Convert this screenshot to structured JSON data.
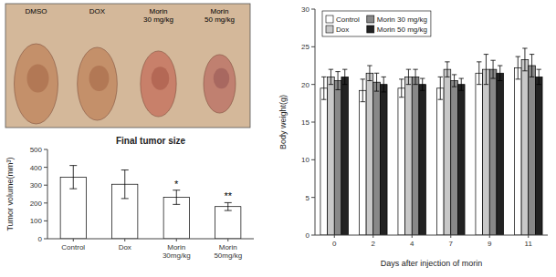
{
  "chart_data": [
    {
      "type": "image",
      "categories": [
        "DMSO",
        "DOX",
        "Morin\n30 mg/kg",
        "Morin\n50 mg/kg"
      ]
    },
    {
      "type": "bar",
      "title": "Final tumor size",
      "y_label": "Tumor volume(mm³)",
      "categories": [
        "Control",
        "Dox",
        "Morin\n30mg/kg",
        "Morin\n50mg/kg"
      ],
      "values": [
        345,
        305,
        232,
        180
      ],
      "errors": [
        65,
        80,
        40,
        22
      ],
      "color": "#ffffff",
      "ylim": [
        0,
        500
      ],
      "yticks": [
        0,
        100,
        200,
        300,
        400,
        500
      ],
      "annotations": [
        {
          "index": 2,
          "text": "*"
        },
        {
          "index": 3,
          "text": "**"
        }
      ]
    },
    {
      "type": "bar",
      "x_label": "Days after injection of morin",
      "y_label": "Body weight(g)",
      "categories": [
        "0",
        "2",
        "4",
        "7",
        "9",
        "11"
      ],
      "series": [
        {
          "name": "Control",
          "color": "#ffffff",
          "values": [
            19.5,
            19.2,
            19.5,
            19.5,
            21.5,
            22.2
          ],
          "errors": [
            1.5,
            1.5,
            1.2,
            1.5,
            1.5,
            1.5
          ]
        },
        {
          "name": "Dox",
          "color": "#c8c8c8",
          "values": [
            21.0,
            21.5,
            21.0,
            22.0,
            22.0,
            23.3
          ],
          "errors": [
            1.0,
            1.0,
            1.0,
            1.0,
            2.0,
            1.5
          ]
        },
        {
          "name": "Morin 30 mg/kg",
          "color": "#888888",
          "values": [
            20.5,
            20.3,
            21.0,
            20.5,
            22.0,
            22.5
          ],
          "errors": [
            1.2,
            1.2,
            1.0,
            0.8,
            1.2,
            1.5
          ]
        },
        {
          "name": "Morin 50 mg/kg",
          "color": "#222222",
          "values": [
            21.0,
            20.0,
            20.0,
            20.0,
            21.5,
            21.0
          ],
          "errors": [
            1.0,
            1.0,
            0.8,
            0.8,
            1.0,
            1.0
          ]
        }
      ],
      "ylim": [
        0,
        30
      ],
      "yticks": [
        0,
        5,
        10,
        15,
        20,
        25,
        30
      ],
      "legend": "upper-left"
    }
  ]
}
